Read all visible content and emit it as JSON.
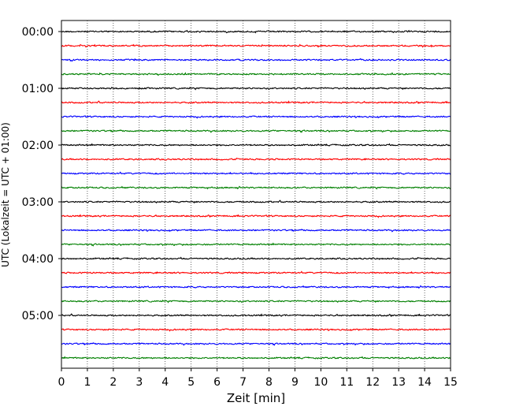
{
  "chart_data": {
    "type": "line",
    "title": "",
    "xlabel": "Zeit  [min]",
    "ylabel": "UTC (Lokalzeit = UTC + 01:00)",
    "xlim": [
      0,
      15
    ],
    "x_ticks": [
      0,
      1,
      2,
      3,
      4,
      5,
      6,
      7,
      8,
      9,
      10,
      11,
      12,
      13,
      14,
      15
    ],
    "x_tick_labels": [
      "0",
      "1",
      "2",
      "3",
      "4",
      "5",
      "6",
      "7",
      "8",
      "9",
      "10",
      "11",
      "12",
      "13",
      "14",
      "15"
    ],
    "y_tick_labels": [
      "00:00",
      "01:00",
      "02:00",
      "03:00",
      "04:00",
      "05:00"
    ],
    "grid": "vertical dotted",
    "trace_minutes": 15,
    "trace_count": 24,
    "trace_colors": [
      "#000000",
      "#ff0000",
      "#0000ff",
      "#008000"
    ],
    "series": [
      {
        "start": "00:00"
      },
      {
        "start": "00:15"
      },
      {
        "start": "00:30"
      },
      {
        "start": "00:45"
      },
      {
        "start": "01:00"
      },
      {
        "start": "01:15"
      },
      {
        "start": "01:30"
      },
      {
        "start": "01:45"
      },
      {
        "start": "02:00"
      },
      {
        "start": "02:15"
      },
      {
        "start": "02:30"
      },
      {
        "start": "02:45"
      },
      {
        "start": "03:00"
      },
      {
        "start": "03:15"
      },
      {
        "start": "03:30"
      },
      {
        "start": "03:45"
      },
      {
        "start": "04:00"
      },
      {
        "start": "04:15"
      },
      {
        "start": "04:30"
      },
      {
        "start": "04:45"
      },
      {
        "start": "05:00"
      },
      {
        "start": "05:15"
      },
      {
        "start": "05:30"
      },
      {
        "start": "05:45"
      }
    ]
  }
}
